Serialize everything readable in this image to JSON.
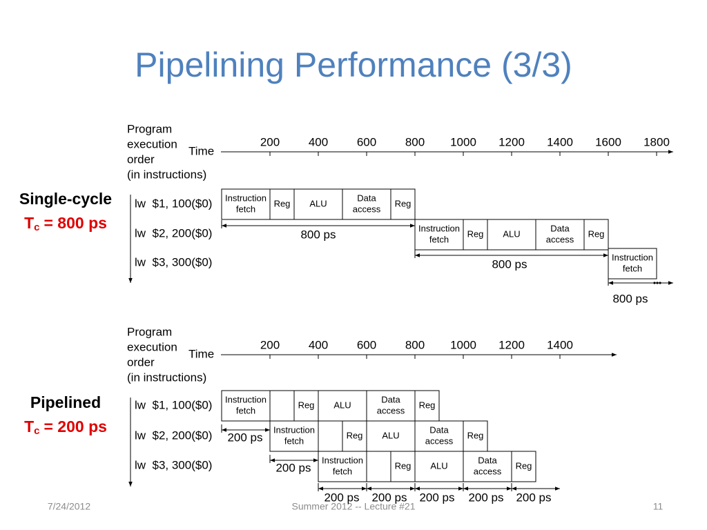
{
  "title": "Pipelining Performance (3/3)",
  "sections": [
    {
      "label": "Single-cycle",
      "tc": {
        "symbol": "T",
        "subscript": "c",
        "value": "= 800 ps"
      },
      "order_label": [
        "Program",
        "execution",
        "order",
        "(in instructions)"
      ],
      "time_label": "Time",
      "time_ticks": [
        200,
        400,
        600,
        800,
        1000,
        1200,
        1400,
        1600,
        1800
      ],
      "instructions": [
        {
          "text": "lw  $1, 100($0)",
          "stages": [
            [
              "Instruction",
              "fetch"
            ],
            [
              "Reg"
            ],
            [
              "ALU"
            ],
            [
              "Data",
              "access"
            ],
            [
              "Reg"
            ]
          ]
        },
        {
          "text": "lw  $2, 200($0)",
          "stages": [
            [
              "Instruction",
              "fetch"
            ],
            [
              "Reg"
            ],
            [
              "ALU"
            ],
            [
              "Data",
              "access"
            ],
            [
              "Reg"
            ]
          ]
        },
        {
          "text": "lw  $3, 300($0)",
          "stages": [
            [
              "Instruction",
              "fetch"
            ]
          ]
        }
      ],
      "durations": [
        "800 ps",
        "800 ps",
        "800 ps"
      ]
    },
    {
      "label": "Pipelined",
      "tc": {
        "symbol": "T",
        "subscript": "c",
        "value": "= 200 ps"
      },
      "order_label": [
        "Program",
        "execution",
        "order",
        "(in instructions)"
      ],
      "time_label": "Time",
      "time_ticks": [
        200,
        400,
        600,
        800,
        1000,
        1200,
        1400
      ],
      "instructions": [
        {
          "text": "lw  $1, 100($0)",
          "stages": [
            [
              "Instruction",
              "fetch"
            ],
            [
              "Reg"
            ],
            [
              "ALU"
            ],
            [
              "Data",
              "access"
            ],
            [
              "Reg"
            ]
          ]
        },
        {
          "text": "lw  $2, 200($0)",
          "stages": [
            [
              "Instruction",
              "fetch"
            ],
            [
              "Reg"
            ],
            [
              "ALU"
            ],
            [
              "Data",
              "access"
            ],
            [
              "Reg"
            ]
          ]
        },
        {
          "text": "lw  $3, 300($0)",
          "stages": [
            [
              "Instruction",
              "fetch"
            ],
            [
              "Reg"
            ],
            [
              "ALU"
            ],
            [
              "Data",
              "access"
            ],
            [
              "Reg"
            ]
          ]
        }
      ],
      "durations": [
        "200 ps",
        "200 ps",
        "200 ps",
        "200 ps",
        "200 ps",
        "200 ps",
        "200 ps"
      ]
    }
  ],
  "footer": {
    "date": "7/24/2012",
    "center": "Summer 2012 -- Lecture #21",
    "page": 11
  }
}
